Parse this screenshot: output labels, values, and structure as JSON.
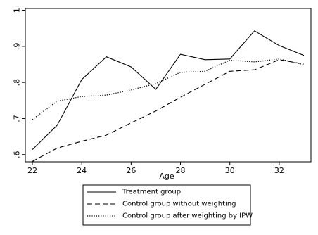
{
  "chart_data": {
    "type": "line",
    "title": "",
    "xlabel": "Age",
    "ylabel": "",
    "xlim": [
      22,
      33
    ],
    "ylim": [
      0.58,
      1.005
    ],
    "x_ticks": [
      22,
      24,
      26,
      28,
      30,
      32
    ],
    "y_ticks": [
      0.6,
      0.7,
      0.8,
      0.9,
      1.0
    ],
    "y_tick_labels": [
      ".6",
      ".7",
      ".8",
      ".9",
      "1"
    ],
    "grid": false,
    "legend_position": "bottom",
    "x": [
      22,
      23,
      24,
      25,
      26,
      27,
      28,
      29,
      30,
      31,
      32,
      33
    ],
    "series": [
      {
        "name": "Treatment group",
        "style": "solid",
        "values": [
          0.614,
          0.681,
          0.808,
          0.871,
          0.843,
          0.781,
          0.878,
          0.863,
          0.865,
          0.943,
          0.902,
          0.875
        ]
      },
      {
        "name": "Control group without weighting",
        "style": "dashed",
        "values": [
          0.581,
          0.618,
          0.637,
          0.654,
          0.688,
          0.721,
          0.759,
          0.795,
          0.831,
          0.835,
          0.863,
          0.851
        ]
      },
      {
        "name": "Control group after weighting by IPW",
        "style": "dotted",
        "values": [
          0.697,
          0.748,
          0.761,
          0.765,
          0.779,
          0.797,
          0.828,
          0.831,
          0.862,
          0.857,
          0.865,
          0.849
        ]
      }
    ]
  }
}
